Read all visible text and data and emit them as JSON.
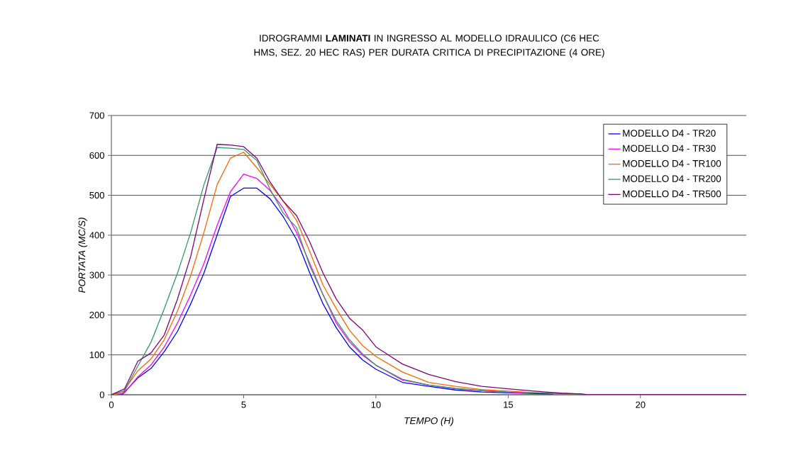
{
  "chart_data": {
    "type": "line",
    "title": "IDROGRAMMI **LAMINATI** IN INGRESSO AL MODELLO IDRAULICO (C6 HEC HMS, SEZ. 20 HEC RAS) PER DURATA CRITICA DI PRECIPITAZIONE (4 ORE)",
    "xlabel": "TEMPO (H)",
    "ylabel": "PORTATA (MC/S)",
    "xlim": [
      0,
      24
    ],
    "xticks": [
      0,
      5,
      10,
      15,
      20
    ],
    "ylim": [
      0,
      700
    ],
    "yticks": [
      0,
      100,
      200,
      300,
      400,
      500,
      600,
      700
    ],
    "grid": "y",
    "legend": "top right",
    "marker": "none",
    "line_style": "solid",
    "series": [
      {
        "name": "MODELLO D4 - TR20",
        "color": "#0000ff",
        "x": [
          0,
          0.4,
          1,
          1.5,
          2,
          2.5,
          3,
          3.5,
          4,
          4.5,
          5,
          5.5,
          6,
          6.5,
          7,
          7.5,
          8,
          8.5,
          9,
          9.5,
          10,
          11,
          12,
          13,
          14,
          15,
          16,
          16.7
        ],
        "values": [
          0,
          0,
          42,
          66,
          108,
          159,
          228,
          305,
          401,
          497,
          518,
          518,
          491,
          446,
          389,
          305,
          228,
          168,
          120,
          87,
          64,
          31,
          21,
          12,
          7,
          5,
          3,
          2
        ]
      },
      {
        "name": "MODELLO D4 - TR30",
        "color": "#ff00ff",
        "x": [
          0,
          0.5,
          1,
          1.5,
          2,
          2.5,
          3,
          3.5,
          4,
          4.5,
          5,
          5.5,
          6,
          6.5,
          7,
          7.5,
          8,
          8.5,
          9,
          9.5,
          10,
          11,
          12,
          13,
          14,
          15,
          15.6
        ],
        "values": [
          0,
          5,
          45,
          75,
          120,
          180,
          251,
          329,
          425,
          509,
          553,
          542,
          512,
          467,
          407,
          329,
          251,
          180,
          133,
          99,
          74,
          37,
          24,
          15,
          10,
          6,
          4
        ]
      },
      {
        "name": "MODELLO D4 - TR100",
        "color": "#ff6600",
        "x": [
          0,
          0.4,
          1,
          1.5,
          2,
          2.5,
          3,
          3.5,
          4,
          4.5,
          5,
          5.5,
          6,
          6.5,
          7,
          7.5,
          8,
          8.5,
          9,
          9.5,
          10,
          11,
          12,
          13,
          14,
          15,
          16,
          17,
          17.5
        ],
        "values": [
          0,
          3,
          60,
          90,
          138,
          210,
          299,
          407,
          527,
          593,
          608,
          569,
          527,
          485,
          437,
          359,
          275,
          216,
          162,
          123,
          96,
          57,
          31,
          21,
          13,
          9,
          5,
          3,
          2
        ]
      },
      {
        "name": "MODELLO D4 - TR200",
        "color": "#339966",
        "x": [
          0,
          0.5,
          1,
          1.5,
          2,
          2.5,
          3,
          3.5,
          4,
          4.5,
          5,
          5.5,
          6,
          6.5,
          7,
          7.5,
          8,
          8.5,
          9,
          9.5,
          10,
          11,
          12,
          13,
          14,
          15,
          16,
          17,
          17.8
        ],
        "values": [
          0,
          10,
          72,
          132,
          216,
          305,
          407,
          527,
          620,
          618,
          615,
          587,
          515,
          455,
          419,
          323,
          251,
          186,
          138,
          102,
          74,
          39,
          24,
          16,
          11,
          7,
          5,
          3,
          2
        ]
      },
      {
        "name": "MODELLO D4 - TR500",
        "color": "#800080",
        "x": [
          0,
          0.5,
          1,
          1.5,
          2,
          2.5,
          3,
          3.5,
          4,
          4.5,
          5,
          5.5,
          6,
          6.5,
          7,
          7.5,
          8,
          8.5,
          9,
          9.5,
          10,
          11,
          12,
          13,
          14,
          15,
          16,
          17,
          17.8,
          18,
          24
        ],
        "values": [
          0,
          15,
          84,
          105,
          150,
          240,
          347,
          491,
          628,
          626,
          622,
          593,
          533,
          485,
          449,
          383,
          305,
          240,
          192,
          162,
          120,
          77,
          51,
          33,
          21,
          15,
          9,
          4,
          2,
          0,
          0
        ]
      }
    ]
  }
}
